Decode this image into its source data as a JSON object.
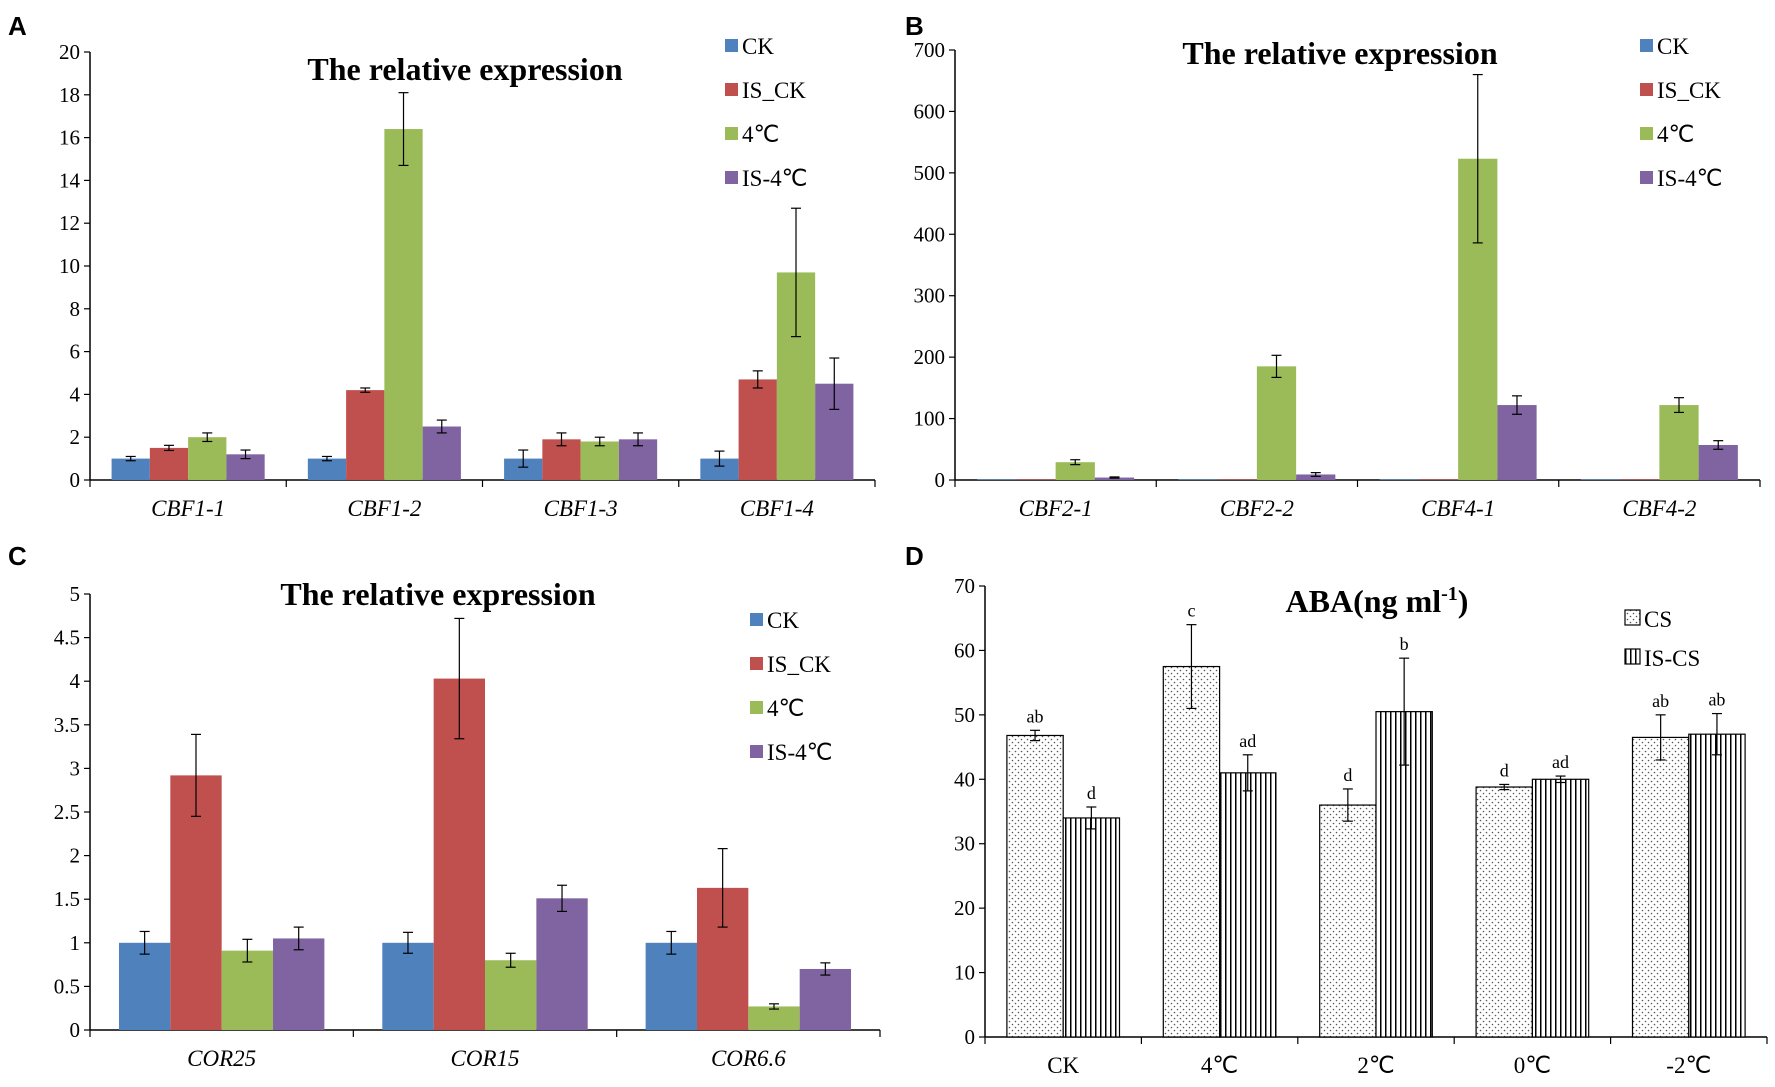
{
  "chart_data": [
    {
      "panel": "A",
      "type": "bar",
      "title": "The  relative expression",
      "categories": [
        "CBF1-1",
        "CBF1-2",
        "CBF1-3",
        "CBF1-4"
      ],
      "italic_categories": true,
      "ylim": [
        0,
        20
      ],
      "yticks": [
        0,
        2,
        4,
        6,
        8,
        10,
        12,
        14,
        16,
        18,
        20
      ],
      "legend_position": "top-right",
      "series": [
        {
          "name": "CK",
          "color": "#4f81bd",
          "values": [
            1.0,
            1.0,
            1.0,
            1.0
          ],
          "errors": [
            0.1,
            0.1,
            0.4,
            0.35
          ]
        },
        {
          "name": "IS_CK",
          "color": "#c0504d",
          "values": [
            1.5,
            4.2,
            1.9,
            4.7
          ],
          "errors": [
            0.12,
            0.1,
            0.3,
            0.4
          ]
        },
        {
          "name": "4℃",
          "color": "#9bbb59",
          "values": [
            2.0,
            16.4,
            1.8,
            9.7
          ],
          "errors": [
            0.2,
            1.7,
            0.2,
            3.0
          ]
        },
        {
          "name": "IS-4℃",
          "color": "#8064a2",
          "values": [
            1.2,
            2.5,
            1.9,
            4.5
          ],
          "errors": [
            0.2,
            0.3,
            0.3,
            1.2
          ]
        }
      ]
    },
    {
      "panel": "B",
      "type": "bar",
      "title": "The  relative expression",
      "categories": [
        "CBF2-1",
        "CBF2-2",
        "CBF4-1",
        "CBF4-2"
      ],
      "italic_categories": true,
      "ylim": [
        0,
        700
      ],
      "yticks": [
        0,
        100,
        200,
        300,
        400,
        500,
        600,
        700
      ],
      "legend_position": "top-right",
      "series": [
        {
          "name": "CK",
          "color": "#4f81bd",
          "values": [
            1,
            1,
            1,
            1
          ],
          "errors": [
            0,
            0,
            0,
            0
          ]
        },
        {
          "name": "IS_CK",
          "color": "#c0504d",
          "values": [
            1,
            1,
            1,
            1
          ],
          "errors": [
            0,
            0,
            0,
            0
          ]
        },
        {
          "name": "4℃",
          "color": "#9bbb59",
          "values": [
            29,
            185,
            523,
            122
          ],
          "errors": [
            4,
            18,
            137,
            12
          ]
        },
        {
          "name": "IS-4℃",
          "color": "#8064a2",
          "values": [
            4,
            9,
            122,
            57
          ],
          "errors": [
            1,
            3,
            15,
            7
          ]
        }
      ]
    },
    {
      "panel": "C",
      "type": "bar",
      "title": "The  relative expression",
      "categories": [
        "COR25",
        "COR15",
        "COR6.6"
      ],
      "italic_categories": true,
      "ylim": [
        0,
        5
      ],
      "yticks": [
        0,
        0.5,
        1,
        1.5,
        2,
        2.5,
        3,
        3.5,
        4,
        4.5,
        5
      ],
      "legend_position": "top-right",
      "series": [
        {
          "name": "CK",
          "color": "#4f81bd",
          "values": [
            1.0,
            1.0,
            1.0
          ],
          "errors": [
            0.13,
            0.12,
            0.13
          ]
        },
        {
          "name": "IS_CK",
          "color": "#c0504d",
          "values": [
            2.92,
            4.03,
            1.63
          ],
          "errors": [
            0.47,
            0.69,
            0.45
          ]
        },
        {
          "name": "4℃",
          "color": "#9bbb59",
          "values": [
            0.91,
            0.8,
            0.27
          ],
          "errors": [
            0.13,
            0.08,
            0.03
          ]
        },
        {
          "name": "IS-4℃",
          "color": "#8064a2",
          "values": [
            1.05,
            1.51,
            0.7
          ],
          "errors": [
            0.13,
            0.15,
            0.07
          ]
        }
      ]
    },
    {
      "panel": "D",
      "type": "bar",
      "title": "ABA(ng ml",
      "title_superscript": "-1",
      "title_suffix": ")",
      "categories": [
        "CK",
        "4℃",
        "2℃",
        "0℃",
        "-2℃"
      ],
      "italic_categories": false,
      "ylim": [
        0,
        70
      ],
      "yticks": [
        0,
        10,
        20,
        30,
        40,
        50,
        60,
        70
      ],
      "legend_position": "top-right",
      "series": [
        {
          "name": "CS",
          "pattern": "dots",
          "values": [
            46.8,
            57.5,
            36.0,
            38.8,
            46.5
          ],
          "errors": [
            0.8,
            6.5,
            2.5,
            0.4,
            3.5
          ],
          "labels": [
            "ab",
            "c",
            "d",
            "d",
            "ab"
          ]
        },
        {
          "name": "IS-CS",
          "pattern": "stripes",
          "values": [
            34.0,
            41.0,
            50.5,
            40.0,
            47.0
          ],
          "errors": [
            1.7,
            2.8,
            8.3,
            0.5,
            3.2
          ],
          "labels": [
            "d",
            "ad",
            "b",
            "ad",
            "ab"
          ]
        }
      ]
    }
  ]
}
